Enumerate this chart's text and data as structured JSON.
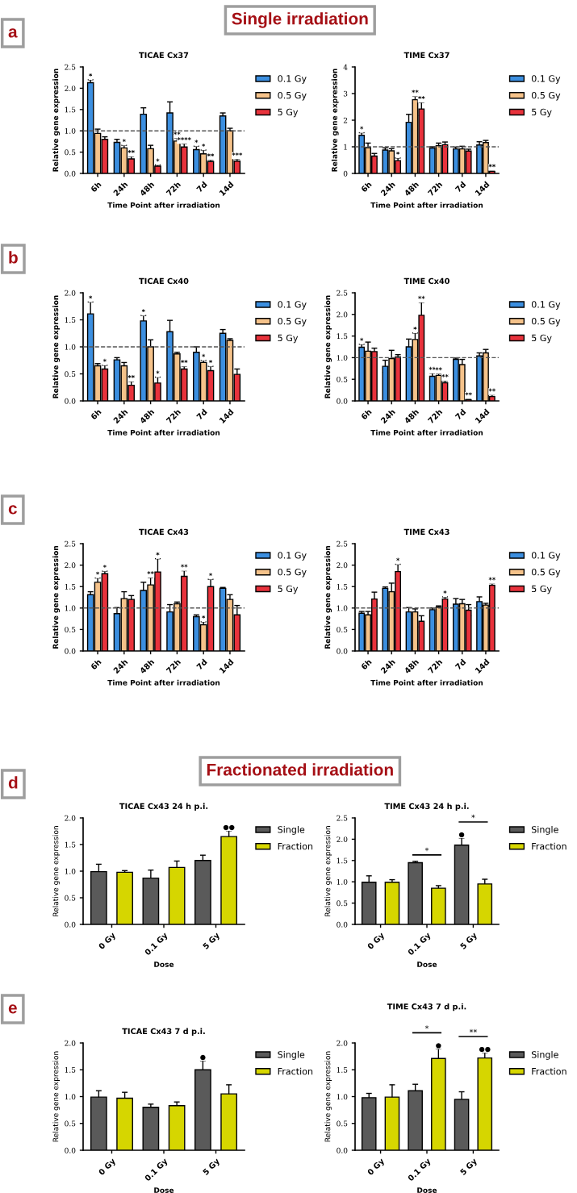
{
  "chart_data": [
    {
      "type": "bar",
      "title": "TICAE Cx37",
      "xlabel": "Time Point after irradiation",
      "ylabel": "Relative gene expression",
      "categories": [
        "6h",
        "24h",
        "48h",
        "72h",
        "7d",
        "14d"
      ],
      "ylim": [
        0,
        2.5
      ],
      "yticks": [
        {
          "value": 0,
          "label": "0.0"
        },
        0.5,
        {
          "value": 1,
          "label": "1.0"
        },
        1.5,
        {
          "value": 2,
          "label": "2.0"
        },
        2.5
      ],
      "legend": "right",
      "grid": false,
      "ref_lines": [
        {
          "axis": "y",
          "value": 1,
          "line_style": "dashed"
        }
      ],
      "annotations": [
        "a",
        "Single irradiation"
      ],
      "series": [
        {
          "name": "0.1 Gy",
          "color": "#3c8fe0",
          "values": [
            2.13,
            0.73,
            1.39,
            1.42,
            0.56,
            1.35
          ],
          "errors": [
            0.07,
            0.07,
            0.15,
            0.26,
            0.08,
            0.07
          ],
          "value_labels": [
            "*",
            null,
            null,
            null,
            "*",
            null
          ]
        },
        {
          "name": "0.5 Gy",
          "color": "#f5c28a",
          "values": [
            0.94,
            0.6,
            0.58,
            0.76,
            0.46,
            1.0
          ],
          "errors": [
            0.1,
            0.06,
            0.08,
            0.07,
            0.09,
            0.06
          ],
          "value_labels": [
            null,
            "*",
            null,
            "**",
            "*",
            null
          ]
        },
        {
          "name": "5 Gy",
          "color": "#e8323c",
          "values": [
            0.8,
            0.34,
            0.17,
            0.62,
            0.28,
            0.29
          ],
          "errors": [
            0.06,
            0.06,
            0.03,
            0.08,
            0.04,
            0.05
          ],
          "value_labels": [
            null,
            "**",
            "*",
            "****",
            "**",
            "***"
          ]
        }
      ]
    },
    {
      "type": "bar",
      "title": "TIME Cx37",
      "xlabel": "Time Point after irradiation",
      "ylabel": "Relative gene expression",
      "categories": [
        "6h",
        "24h",
        "48h",
        "72h",
        "7d",
        "14d"
      ],
      "ylim": [
        0,
        4
      ],
      "yticks": [
        0,
        1,
        2,
        3,
        4
      ],
      "legend": "right",
      "grid": false,
      "ref_lines": [
        {
          "axis": "y",
          "value": 1,
          "line_style": "dashed"
        }
      ],
      "series": [
        {
          "name": "0.1 Gy",
          "color": "#3c8fe0",
          "values": [
            1.43,
            0.88,
            1.92,
            0.95,
            0.92,
            1.07
          ],
          "errors": [
            0.1,
            0.08,
            0.3,
            0.05,
            0.07,
            0.12
          ],
          "value_labels": [
            "*",
            null,
            null,
            null,
            null,
            null
          ]
        },
        {
          "name": "0.5 Gy",
          "color": "#f5c28a",
          "values": [
            0.97,
            0.85,
            2.77,
            1.04,
            0.92,
            1.16
          ],
          "errors": [
            0.17,
            0.08,
            0.13,
            0.1,
            0.1,
            0.08
          ],
          "value_labels": [
            null,
            null,
            "**",
            null,
            null,
            null
          ]
        },
        {
          "name": "5 Gy",
          "color": "#e8323c",
          "values": [
            0.65,
            0.48,
            2.42,
            1.08,
            0.84,
            0.08
          ],
          "errors": [
            0.1,
            0.1,
            0.25,
            0.1,
            0.07,
            0.03
          ],
          "value_labels": [
            null,
            "*",
            "**",
            null,
            null,
            "**"
          ]
        }
      ]
    },
    {
      "type": "bar",
      "title": "TICAE Cx40",
      "xlabel": "Time Point after irradiation",
      "ylabel": "Relative gene expression",
      "categories": [
        "6h",
        "24h",
        "48h",
        "72h",
        "7d",
        "14d"
      ],
      "ylim": [
        0,
        2
      ],
      "yticks": [
        {
          "value": 0,
          "label": "0.0"
        },
        0.5,
        {
          "value": 1,
          "label": "1.0"
        },
        1.5,
        {
          "value": 2,
          "label": "2.0"
        }
      ],
      "legend": "right",
      "grid": false,
      "ref_lines": [
        {
          "axis": "y",
          "value": 1,
          "line_style": "dashed"
        }
      ],
      "annotations": [
        "b"
      ],
      "series": [
        {
          "name": "0.1 Gy",
          "color": "#3c8fe0",
          "values": [
            1.61,
            0.76,
            1.48,
            1.28,
            0.9,
            1.25
          ],
          "errors": [
            0.22,
            0.04,
            0.1,
            0.21,
            0.1,
            0.07
          ],
          "value_labels": [
            "*",
            null,
            "*",
            null,
            null,
            null
          ]
        },
        {
          "name": "0.5 Gy",
          "color": "#f5c28a",
          "values": [
            0.65,
            0.65,
            1.0,
            0.87,
            0.71,
            1.12
          ],
          "errors": [
            0.04,
            0.06,
            0.13,
            0.03,
            0.04,
            0.03
          ],
          "value_labels": [
            null,
            null,
            null,
            null,
            "*",
            null
          ]
        },
        {
          "name": "5 Gy",
          "color": "#e8323c",
          "values": [
            0.59,
            0.29,
            0.33,
            0.59,
            0.56,
            0.49
          ],
          "errors": [
            0.07,
            0.07,
            0.11,
            0.05,
            0.08,
            0.1
          ],
          "value_labels": [
            "*",
            "**",
            "*",
            "**",
            "*",
            null
          ]
        }
      ]
    },
    {
      "type": "bar",
      "title": "TIME Cx40",
      "xlabel": "Time Point after irradiation",
      "ylabel": "Relative gene expression",
      "categories": [
        "6h",
        "24h",
        "48h",
        "72h",
        "7d",
        "14d"
      ],
      "ylim": [
        0,
        2.5
      ],
      "yticks": [
        {
          "value": 0,
          "label": "0.0"
        },
        0.5,
        {
          "value": 1,
          "label": "1.0"
        },
        1.5,
        {
          "value": 2,
          "label": "2.0"
        },
        2.5
      ],
      "legend": "right",
      "grid": false,
      "ref_lines": [
        {
          "axis": "y",
          "value": 1,
          "line_style": "dashed"
        }
      ],
      "series": [
        {
          "name": "0.1 Gy",
          "color": "#3c8fe0",
          "values": [
            1.24,
            0.8,
            1.25,
            0.57,
            0.96,
            1.04
          ],
          "errors": [
            0.07,
            0.14,
            0.18,
            0.07,
            0.03,
            0.07
          ],
          "value_labels": [
            "*",
            null,
            null,
            "**",
            null,
            null
          ]
        },
        {
          "name": "0.5 Gy",
          "color": "#f5c28a",
          "values": [
            1.15,
            0.98,
            1.42,
            0.59,
            0.84,
            1.11
          ],
          "errors": [
            0.21,
            0.19,
            0.15,
            0.04,
            0.12,
            0.08
          ],
          "value_labels": [
            null,
            null,
            "*",
            "**",
            null,
            null
          ]
        },
        {
          "name": "5 Gy",
          "color": "#e8323c",
          "values": [
            1.14,
            1.02,
            1.98,
            0.42,
            0.03,
            0.1
          ],
          "errors": [
            0.08,
            0.05,
            0.3,
            0.05,
            0.02,
            0.04
          ],
          "value_labels": [
            null,
            null,
            "**",
            "**",
            "**",
            "**"
          ]
        }
      ]
    },
    {
      "type": "bar",
      "title": "TICAE Cx43",
      "xlabel": "Time Point after irradiation",
      "ylabel": "Relative gene expression",
      "categories": [
        "6h",
        "24h",
        "48h",
        "72h",
        "7d",
        "14d"
      ],
      "ylim": [
        0,
        2.5
      ],
      "yticks": [
        {
          "value": 0,
          "label": "0.0"
        },
        0.5,
        {
          "value": 1,
          "label": "1.0"
        },
        1.5,
        {
          "value": 2,
          "label": "2.0"
        },
        2.5
      ],
      "legend": "right",
      "grid": false,
      "ref_lines": [
        {
          "axis": "y",
          "value": 1,
          "line_style": "dashed"
        }
      ],
      "annotations": [
        "c"
      ],
      "series": [
        {
          "name": "0.1 Gy",
          "color": "#3c8fe0",
          "values": [
            1.31,
            0.87,
            1.41,
            0.91,
            0.8,
            1.46
          ],
          "errors": [
            0.07,
            0.14,
            0.19,
            0.17,
            0.04,
            0.02
          ]
        },
        {
          "name": "0.5 Gy",
          "color": "#f5c28a",
          "values": [
            1.6,
            1.22,
            1.54,
            1.1,
            0.61,
            1.2
          ],
          "errors": [
            0.1,
            0.16,
            0.17,
            0.04,
            0.07,
            0.11
          ],
          "value_labels": [
            "*",
            null,
            "**",
            null,
            "*",
            null
          ]
        },
        {
          "name": "5 Gy",
          "color": "#e8323c",
          "values": [
            1.8,
            1.2,
            1.84,
            1.74,
            1.5,
            0.84
          ],
          "errors": [
            0.06,
            0.09,
            0.31,
            0.13,
            0.17,
            0.22
          ],
          "value_labels": [
            "*",
            null,
            "*",
            "**",
            "*",
            null
          ]
        }
      ]
    },
    {
      "type": "bar",
      "title": "TIME Cx43",
      "xlabel": "Time Point after irradiation",
      "ylabel": "Relative gene expression",
      "categories": [
        "6h",
        "24h",
        "48h",
        "72h",
        "7d",
        "14d"
      ],
      "ylim": [
        0,
        2.5
      ],
      "yticks": [
        {
          "value": 0,
          "label": "0.0"
        },
        0.5,
        {
          "value": 1,
          "label": "1.0"
        },
        1.5,
        {
          "value": 2,
          "label": "2.0"
        },
        2.5
      ],
      "legend": "right",
      "grid": false,
      "ref_lines": [
        {
          "axis": "y",
          "value": 1,
          "line_style": "dashed"
        }
      ],
      "series": [
        {
          "name": "0.1 Gy",
          "color": "#3c8fe0",
          "values": [
            0.88,
            1.46,
            0.91,
            0.96,
            1.09,
            1.15
          ],
          "errors": [
            0.04,
            0.03,
            0.1,
            0.04,
            0.13,
            0.11
          ]
        },
        {
          "name": "0.5 Gy",
          "color": "#f5c28a",
          "values": [
            0.84,
            1.38,
            0.91,
            1.02,
            1.1,
            1.07
          ],
          "errors": [
            0.08,
            0.2,
            0.07,
            0.03,
            0.1,
            0.04
          ]
        },
        {
          "name": "5 Gy",
          "color": "#e8323c",
          "values": [
            1.21,
            1.85,
            0.69,
            1.21,
            0.95,
            1.53
          ],
          "errors": [
            0.16,
            0.17,
            0.13,
            0.05,
            0.13,
            0.04
          ],
          "value_labels": [
            null,
            "*",
            null,
            "*",
            null,
            "**"
          ]
        }
      ]
    },
    {
      "type": "bar",
      "title": "TICAE Cx43 24 h p.i.",
      "xlabel": "Dose",
      "ylabel": "Relative gene expression",
      "categories": [
        "0 Gy",
        "0.1 Gy",
        "5 Gy"
      ],
      "ylim": [
        0,
        2
      ],
      "yticks": [
        {
          "value": 0,
          "label": "0.0"
        },
        0.5,
        {
          "value": 1,
          "label": "1.0"
        },
        1.5,
        {
          "value": 2,
          "label": "2.0"
        }
      ],
      "legend": "right",
      "grid": false,
      "annotations": [
        "d",
        "Fractionated irradiation"
      ],
      "series": [
        {
          "name": "Single",
          "color": "#5a5a5a",
          "values": [
            0.99,
            0.87,
            1.2
          ],
          "errors": [
            0.14,
            0.15,
            0.1
          ]
        },
        {
          "name": "Fraction",
          "color": "#d6d600",
          "values": [
            0.98,
            1.07,
            1.65
          ],
          "errors": [
            0.03,
            0.12,
            0.11
          ],
          "value_labels": [
            null,
            null,
            "●●"
          ]
        }
      ]
    },
    {
      "type": "bar",
      "title": "TIME Cx43 24 h p.i.",
      "xlabel": "Dose",
      "ylabel": "Relative gene expression",
      "categories": [
        "0 Gy",
        "0.1 Gy",
        "5 Gy"
      ],
      "ylim": [
        0,
        2.5
      ],
      "yticks": [
        {
          "value": 0,
          "label": "0.0"
        },
        0.5,
        {
          "value": 1,
          "label": "1.0"
        },
        1.5,
        {
          "value": 2,
          "label": "2.0"
        },
        2.5
      ],
      "legend": "right",
      "grid": false,
      "annotations": [
        "*",
        "*"
      ],
      "series": [
        {
          "name": "Single",
          "color": "#5a5a5a",
          "values": [
            0.99,
            1.45,
            1.86
          ],
          "errors": [
            0.15,
            0.03,
            0.17
          ],
          "value_labels": [
            null,
            null,
            "●"
          ]
        },
        {
          "name": "Fraction",
          "color": "#d6d600",
          "values": [
            0.99,
            0.85,
            0.95
          ],
          "errors": [
            0.06,
            0.06,
            0.11
          ]
        }
      ]
    },
    {
      "type": "bar",
      "title": "TICAE Cx43 7 d p.i.",
      "xlabel": "Dose",
      "ylabel": "Relative gene expression",
      "categories": [
        "0 Gy",
        "0.1 Gy",
        "5 Gy"
      ],
      "ylim": [
        0,
        2
      ],
      "yticks": [
        {
          "value": 0,
          "label": "0.0"
        },
        0.5,
        {
          "value": 1,
          "label": "1.0"
        },
        1.5,
        {
          "value": 2,
          "label": "2.0"
        }
      ],
      "legend": "right",
      "grid": false,
      "annotations": [
        "e"
      ],
      "series": [
        {
          "name": "Single",
          "color": "#5a5a5a",
          "values": [
            0.99,
            0.8,
            1.5
          ],
          "errors": [
            0.12,
            0.06,
            0.17
          ],
          "value_labels": [
            null,
            null,
            "●"
          ]
        },
        {
          "name": "Fraction",
          "color": "#d6d600",
          "values": [
            0.97,
            0.83,
            1.05
          ],
          "errors": [
            0.11,
            0.07,
            0.17
          ]
        }
      ]
    },
    {
      "type": "bar",
      "title": "TIME Cx43 7 d p.i.",
      "xlabel": "Dose",
      "ylabel": "Relative gene expression",
      "categories": [
        "0 Gy",
        "0.1 Gy",
        "5 Gy"
      ],
      "ylim": [
        0,
        2
      ],
      "yticks": [
        {
          "value": 0,
          "label": "0.0"
        },
        0.5,
        {
          "value": 1,
          "label": "1.0"
        },
        1.5,
        {
          "value": 2,
          "label": "2.0"
        }
      ],
      "legend": "right",
      "grid": false,
      "annotations": [
        "*",
        "**"
      ],
      "series": [
        {
          "name": "Single",
          "color": "#5a5a5a",
          "values": [
            0.98,
            1.11,
            0.95
          ],
          "errors": [
            0.08,
            0.12,
            0.14
          ]
        },
        {
          "name": "Fraction",
          "color": "#d6d600",
          "values": [
            0.99,
            1.71,
            1.72
          ],
          "errors": [
            0.23,
            0.18,
            0.1
          ],
          "value_labels": [
            null,
            "●",
            "●●"
          ]
        }
      ]
    }
  ]
}
